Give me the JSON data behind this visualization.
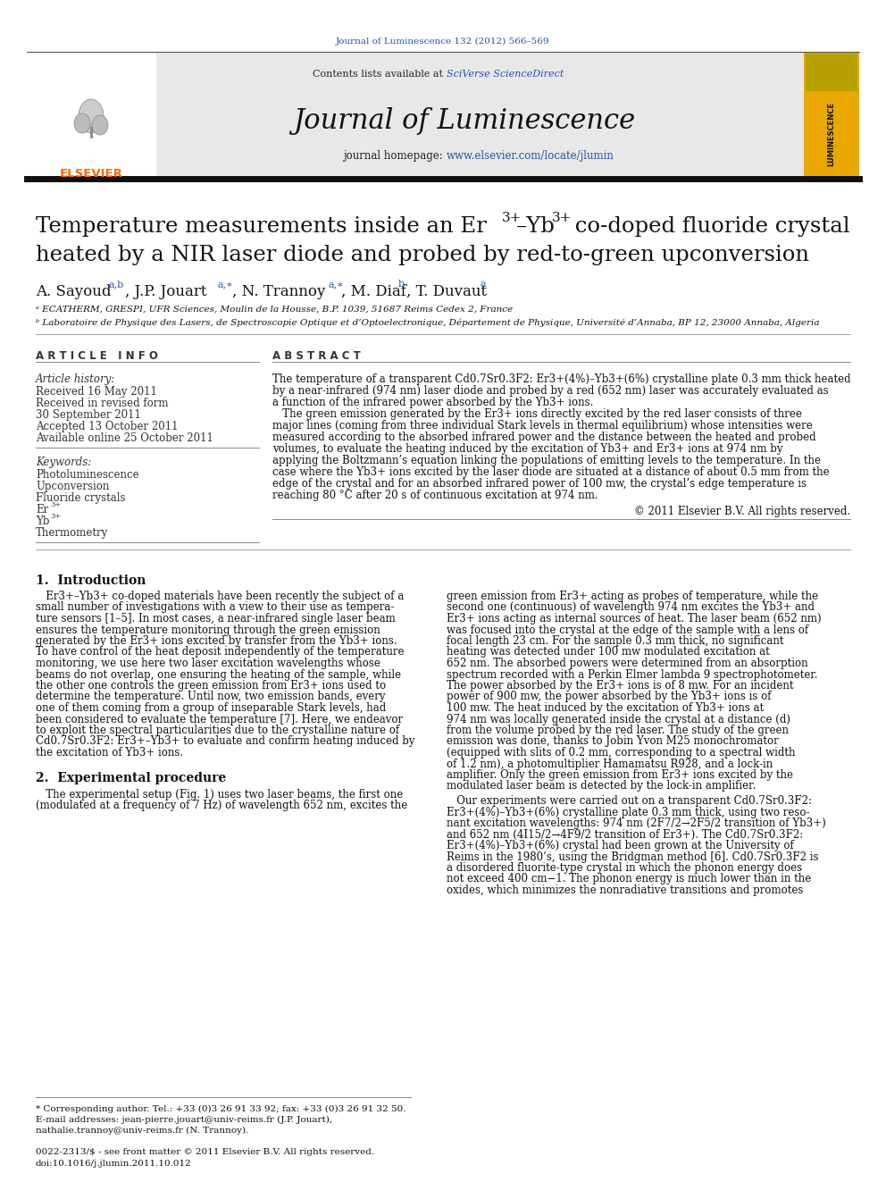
{
  "page_color": "#ffffff",
  "top_journal_ref": "Journal of Luminescence 132 (2012) 566–569",
  "top_journal_ref_color": "#2255aa",
  "header_bg": "#e8e8e8",
  "header_contents_text": "Contents lists available at ",
  "header_sciverse": "SciVerse ScienceDirect",
  "header_sciverse_color": "#2255aa",
  "journal_title": "Journal of Luminescence",
  "header_homepage_text": "journal homepage: ",
  "header_url": "www.elsevier.com/locate/jlumin",
  "header_url_color": "#2255aa",
  "elsevier_logo_color": "#ff6600",
  "elsevier_text": "ELSEVIER",
  "cover_bg": "#e8a800",
  "cover_text": "LUMINESCENCE",
  "article_title_line2": "heated by a NIR laser diode and probed by red-to-green upconversion",
  "affiliation_a": "ᵃ ECATHERM, GRESPI, UFR Sciences, Moulin de la Housse, B.P. 1039, 51687 Reims Cedex 2, France",
  "affiliation_b": "ᵇ Laboratoire de Physique des Lasers, de Spectroscopie Optique et d’Optoelectronique, Département de Physique, Université d’Annaba, BP 12, 23000 Annaba, Algeria",
  "section_article_info": "A R T I C L E   I N F O",
  "section_abstract": "A B S T R A C T",
  "article_history_label": "Article history:",
  "received1": "Received 16 May 2011",
  "revised": "Received in revised form",
  "revised2": "30 September 2011",
  "accepted": "Accepted 13 October 2011",
  "available": "Available online 25 October 2011",
  "keywords_label": "Keywords:",
  "keyword1": "Photoluminescence",
  "keyword2": "Upconversion",
  "keyword3": "Fluoride crystals",
  "keyword4": "Er3+",
  "keyword5": "Yb3+",
  "keyword6": "Thermometry",
  "abstract_text_1": "The temperature of a transparent Cd0.7Sr0.3F2: Er3+(4%)–Yb3+(6%) crystalline plate 0.3 mm thick heated",
  "abstract_text_2": "by a near-infrared (974 nm) laser diode and probed by a red (652 nm) laser was accurately evaluated as",
  "abstract_text_3": "a function of the infrared power absorbed by the Yb3+ ions.",
  "abstract_text_4": "   The green emission generated by the Er3+ ions directly excited by the red laser consists of three",
  "abstract_text_5": "major lines (coming from three individual Stark levels in thermal equilibrium) whose intensities were",
  "abstract_text_6": "measured according to the absorbed infrared power and the distance between the heated and probed",
  "abstract_text_7": "volumes, to evaluate the heating induced by the excitation of Yb3+ and Er3+ ions at 974 nm by",
  "abstract_text_8": "applying the Boltzmann’s equation linking the populations of emitting levels to the temperature. In the",
  "abstract_text_9": "case where the Yb3+ ions excited by the laser diode are situated at a distance of about 0.5 mm from the",
  "abstract_text_10": "edge of the crystal and for an absorbed infrared power of 100 mw, the crystal’s edge temperature is",
  "abstract_text_11": "reaching 80 °C after 20 s of continuous excitation at 974 nm.",
  "copyright": "© 2011 Elsevier B.V. All rights reserved.",
  "section1_title": "1.  Introduction",
  "intro_left_lines": [
    "   Er3+–Yb3+ co-doped materials have been recently the subject of a",
    "small number of investigations with a view to their use as tempera-",
    "ture sensors [1–5]. In most cases, a near-infrared single laser beam",
    "ensures the temperature monitoring through the green emission",
    "generated by the Er3+ ions excited by transfer from the Yb3+ ions.",
    "To have control of the heat deposit independently of the temperature",
    "monitoring, we use here two laser excitation wavelengths whose",
    "beams do not overlap, one ensuring the heating of the sample, while",
    "the other one controls the green emission from Er3+ ions used to",
    "determine the temperature. Until now, two emission bands, every",
    "one of them coming from a group of inseparable Stark levels, had",
    "been considered to evaluate the temperature [7]. Here, we endeavor",
    "to exploit the spectral particularities due to the crystalline nature of",
    "Cd0.7Sr0.3F2: Er3+–Yb3+ to evaluate and confirm heating induced by",
    "the excitation of Yb3+ ions."
  ],
  "section2_title": "2.  Experimental procedure",
  "intro2_left_lines": [
    "   The experimental setup (Fig. 1) uses two laser beams, the first one",
    "(modulated at a frequency of 7 Hz) of wavelength 652 nm, excites the"
  ],
  "right_col_lines": [
    "green emission from Er3+ acting as probes of temperature, while the",
    "second one (continuous) of wavelength 974 nm excites the Yb3+ and",
    "Er3+ ions acting as internal sources of heat. The laser beam (652 nm)",
    "was focused into the crystal at the edge of the sample with a lens of",
    "focal length 23 cm. For the sample 0.3 mm thick, no significant",
    "heating was detected under 100 mw modulated excitation at",
    "652 nm. The absorbed powers were determined from an absorption",
    "spectrum recorded with a Perkin Elmer lambda 9 spectrophotometer.",
    "The power absorbed by the Er3+ ions is of 8 mw. For an incident",
    "power of 900 mw, the power absorbed by the Yb3+ ions is of",
    "100 mw. The heat induced by the excitation of Yb3+ ions at",
    "974 nm was locally generated inside the crystal at a distance (d)",
    "from the volume probed by the red laser. The study of the green",
    "emission was done, thanks to Jobin Yvon M25 monochromator",
    "(equipped with slits of 0.2 mm, corresponding to a spectral width",
    "of 1.2 nm), a photomultiplier Hamamatsu R928, and a lock-in",
    "amplifier. Only the green emission from Er3+ ions excited by the",
    "modulated laser beam is detected by the lock-in amplifier."
  ],
  "right_col2_lines": [
    "   Our experiments were carried out on a transparent Cd0.7Sr0.3F2:",
    "Er3+(4%)–Yb3+(6%) crystalline plate 0.3 mm thick, using two reso-",
    "nant excitation wavelengths: 974 nm (2F7/2→2F5/2 transition of Yb3+)",
    "and 652 nm (4I15/2→4F9/2 transition of Er3+). The Cd0.7Sr0.3F2:",
    "Er3+(4%)–Yb3+(6%) crystal had been grown at the University of",
    "Reims in the 1980’s, using the Bridgman method [6]. Cd0.7Sr0.3F2 is",
    "a disordered fluorite-type crystal in which the phonon energy does",
    "not exceed 400 cm−1. The phonon energy is much lower than in the",
    "oxides, which minimizes the nonradiative transitions and promotes"
  ],
  "footnote_star": "* Corresponding author. Tel.: +33 (0)3 26 91 33 92; fax: +33 (0)3 26 91 32 50.",
  "footnote_email1": "E-mail addresses: jean-pierre.jouart@univ-reims.fr (J.P. Jouart),",
  "footnote_email2": "nathalie.trannoy@univ-reims.fr (N. Trannoy).",
  "bottom_line1": "0022-2313/$ - see front matter © 2011 Elsevier B.V. All rights reserved.",
  "bottom_line2": "doi:10.1016/j.jlumin.2011.10.012"
}
